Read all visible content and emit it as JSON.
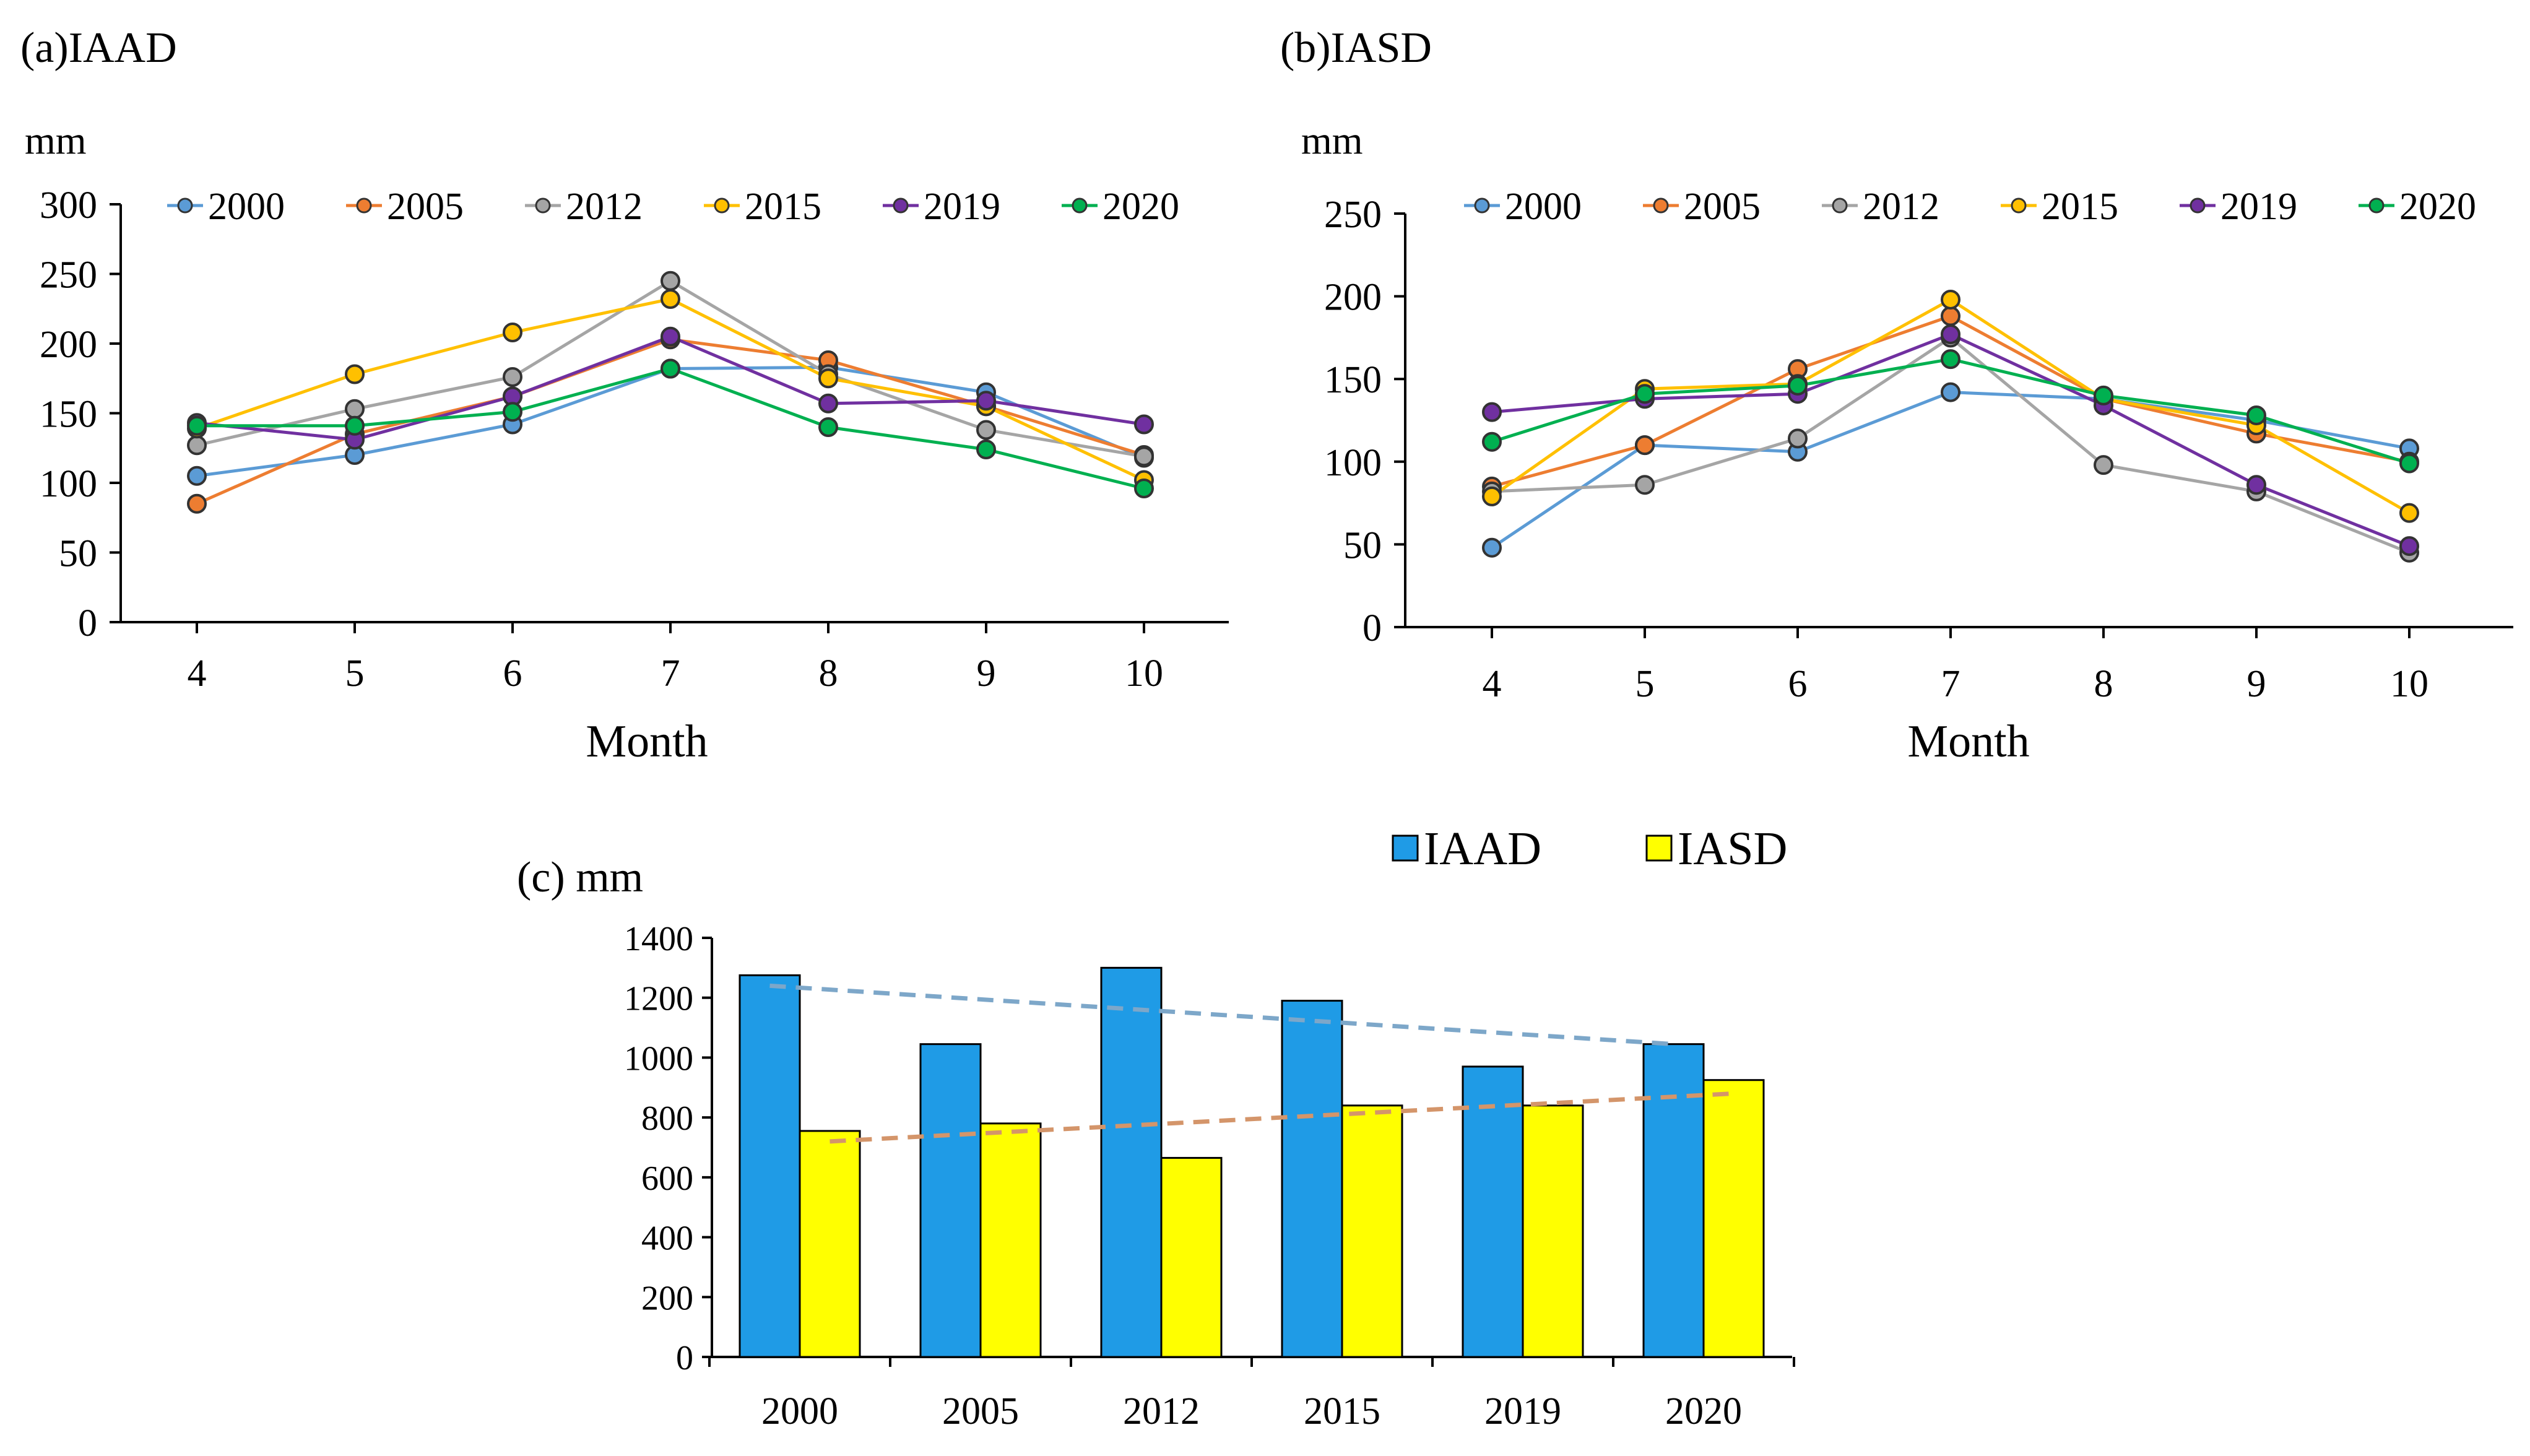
{
  "chart_data": [
    {
      "id": "a",
      "type": "line",
      "title": "(a)IAAD",
      "ylabel": "mm",
      "xlabel": "Month",
      "categories": [
        "4",
        "5",
        "6",
        "7",
        "8",
        "9",
        "10"
      ],
      "yticks": [
        "0",
        "50",
        "100",
        "150",
        "200",
        "250",
        "300"
      ],
      "ylim": [
        0,
        300
      ],
      "series": [
        {
          "name": "2000",
          "color": "#5b9bd5",
          "values": [
            105,
            120,
            142,
            182,
            183,
            165,
            118
          ]
        },
        {
          "name": "2005",
          "color": "#ed7d31",
          "values": [
            85,
            135,
            162,
            203,
            188,
            155,
            120
          ]
        },
        {
          "name": "2012",
          "color": "#a5a5a5",
          "values": [
            127,
            153,
            176,
            245,
            178,
            138,
            119
          ]
        },
        {
          "name": "2015",
          "color": "#ffc000",
          "values": [
            139,
            178,
            208,
            232,
            175,
            155,
            102
          ]
        },
        {
          "name": "2019",
          "color": "#7030a0",
          "values": [
            143,
            131,
            162,
            205,
            157,
            159,
            142
          ]
        },
        {
          "name": "2020",
          "color": "#00b050",
          "values": [
            141,
            141,
            151,
            182,
            140,
            124,
            96
          ]
        }
      ]
    },
    {
      "id": "b",
      "type": "line",
      "title": "(b)IASD",
      "ylabel": "mm",
      "xlabel": "Month",
      "categories": [
        "4",
        "5",
        "6",
        "7",
        "8",
        "9",
        "10"
      ],
      "yticks": [
        "0",
        "50",
        "100",
        "150",
        "200",
        "250"
      ],
      "ylim": [
        0,
        250
      ],
      "series": [
        {
          "name": "2000",
          "color": "#5b9bd5",
          "values": [
            48,
            110,
            106,
            142,
            138,
            125,
            108
          ]
        },
        {
          "name": "2005",
          "color": "#ed7d31",
          "values": [
            85,
            110,
            156,
            188,
            138,
            117,
            100
          ]
        },
        {
          "name": "2012",
          "color": "#a5a5a5",
          "values": [
            82,
            86,
            114,
            175,
            98,
            82,
            45
          ]
        },
        {
          "name": "2015",
          "color": "#ffc000",
          "values": [
            79,
            144,
            147,
            198,
            138,
            122,
            69
          ]
        },
        {
          "name": "2019",
          "color": "#7030a0",
          "values": [
            130,
            138,
            141,
            177,
            134,
            86,
            49
          ]
        },
        {
          "name": "2020",
          "color": "#00b050",
          "values": [
            112,
            141,
            146,
            162,
            140,
            128,
            99
          ]
        }
      ]
    },
    {
      "id": "c",
      "type": "bar",
      "title": "(c) mm",
      "categories": [
        "2000",
        "2005",
        "2012",
        "2015",
        "2019",
        "2020"
      ],
      "yticks": [
        "0",
        "200",
        "400",
        "600",
        "800",
        "1000",
        "1200",
        "1400"
      ],
      "ylim": [
        0,
        1400
      ],
      "series": [
        {
          "name": "IAAD",
          "color": "#1f9be6",
          "values": [
            1275,
            1045,
            1300,
            1190,
            970,
            1045
          ]
        },
        {
          "name": "IASD",
          "color": "#ffff00",
          "values": [
            755,
            780,
            665,
            840,
            840,
            925
          ]
        }
      ],
      "trendlines": [
        {
          "series": "IAAD",
          "color": "#7da7c9",
          "start": 1240,
          "end": 1045
        },
        {
          "series": "IASD",
          "color": "#d4956a",
          "start": 720,
          "end": 880
        }
      ]
    }
  ]
}
